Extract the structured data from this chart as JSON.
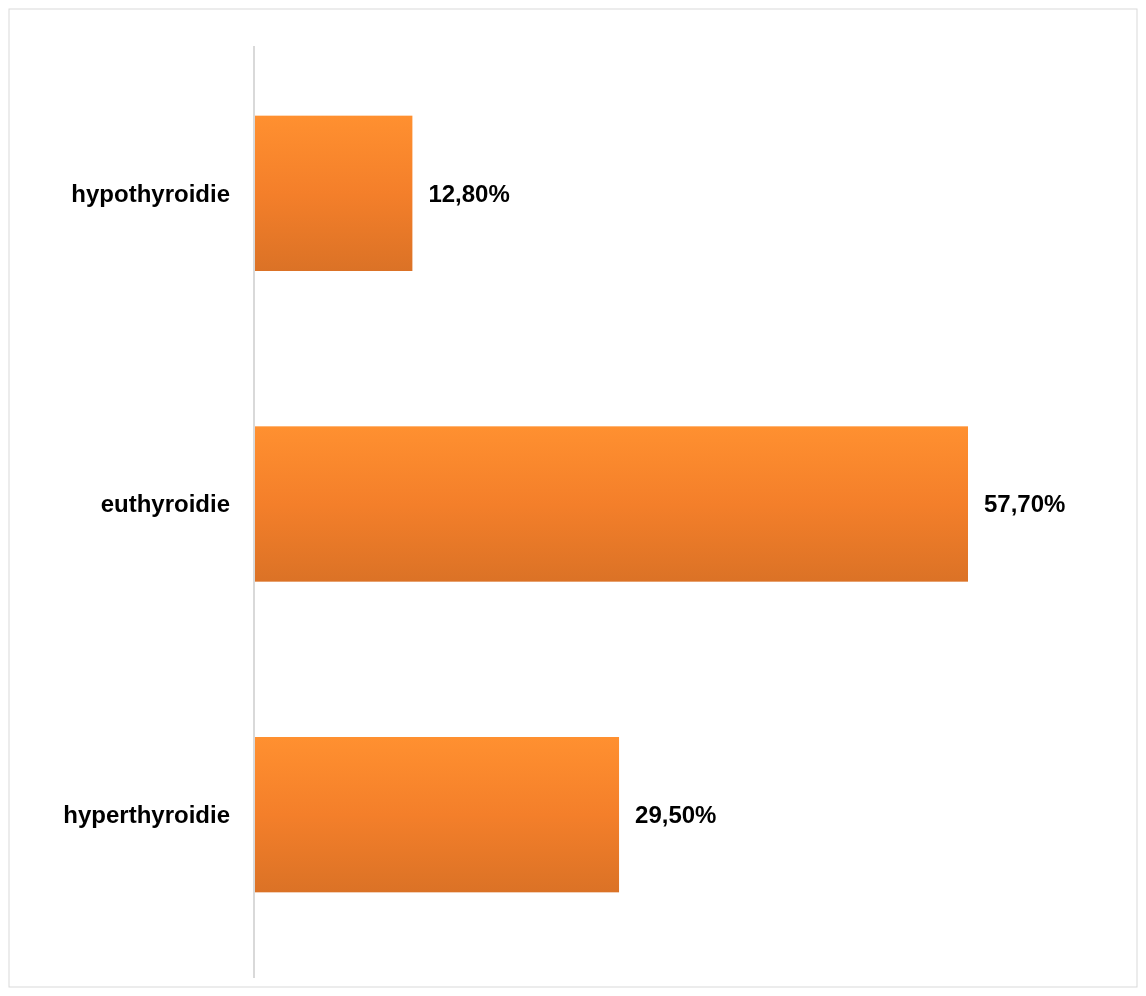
{
  "chart_data": {
    "type": "bar",
    "orientation": "horizontal",
    "categories": [
      "hypothyroidie",
      "euthyroidie",
      "hyperthyroidie"
    ],
    "values": [
      12.8,
      57.7,
      29.5
    ],
    "value_labels": [
      "12,80%",
      "57,70%",
      "29,50%"
    ],
    "color": "#f47f2a"
  }
}
